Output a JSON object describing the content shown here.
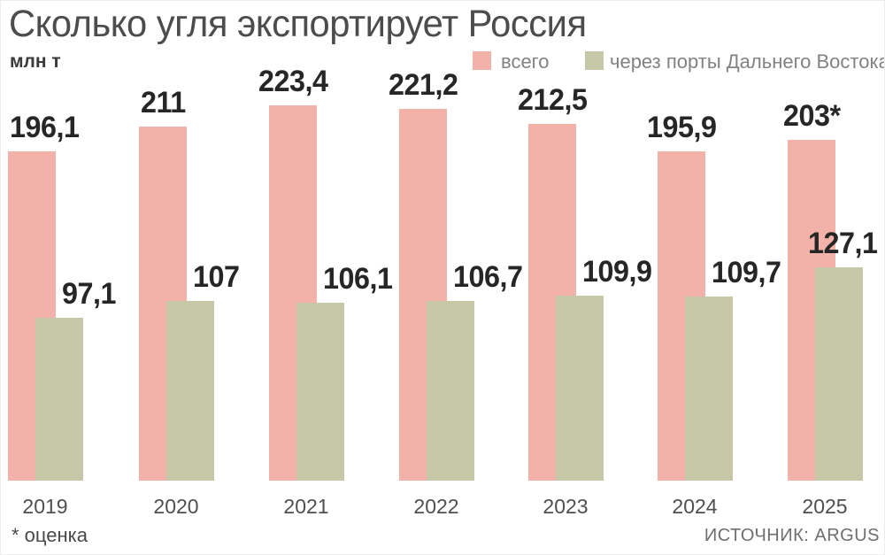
{
  "chart_data": {
    "type": "bar",
    "title": "Сколько угля экспортирует Россия",
    "unit_label": "млн т",
    "categories": [
      "2019",
      "2020",
      "2021",
      "2022",
      "2023",
      "2024",
      "2025"
    ],
    "series": [
      {
        "name": "всего",
        "color": "#f2b2a9",
        "values": [
          196.1,
          211,
          223.4,
          221.2,
          212.5,
          195.9,
          203
        ],
        "labels": [
          "196,1",
          "211",
          "223,4",
          "221,2",
          "212,5",
          "195,9",
          "203*"
        ]
      },
      {
        "name": "через порты Дальнего Востока",
        "color": "#c6c7a7",
        "values": [
          97.1,
          107,
          106.1,
          106.7,
          109.9,
          109.7,
          127.1
        ],
        "labels": [
          "97,1",
          "107",
          "106,1",
          "106,7",
          "109,9",
          "109,7",
          "127,1"
        ]
      }
    ],
    "ylim": [
      0,
      240
    ],
    "grid": false,
    "legend_position": "top-right",
    "footnote": "* оценка",
    "source": "ИСТОЧНИК: ARGUS"
  }
}
